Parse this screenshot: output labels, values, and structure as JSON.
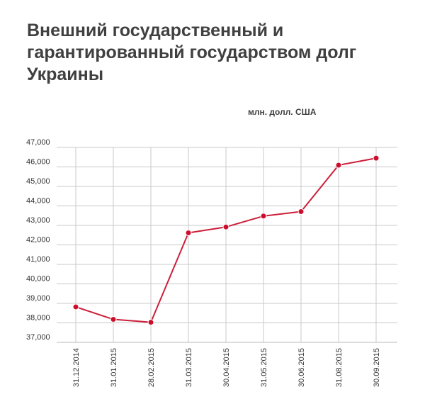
{
  "chart_data": {
    "type": "line",
    "title": "Внешний государственный и гарантированный государством долг Украины",
    "unit_label": "млн. долл. США",
    "x": [
      "31.12.2014",
      "31.01.2015",
      "28.02.2015",
      "31.03.2015",
      "30.04.2015",
      "31.05.2015",
      "30.06.2015",
      "31.08.2015",
      "30.09.2015"
    ],
    "y_ticks": [
      "47,000",
      "46,000",
      "45,000",
      "44,000",
      "43,000",
      "42,000",
      "41,000",
      "40,000",
      "39,000",
      "38,000",
      "37,000"
    ],
    "series": [
      {
        "values": [
          38820,
          38180,
          38030,
          42620,
          42920,
          43480,
          43710,
          46090,
          46450
        ]
      }
    ],
    "ylim": [
      37000,
      47000
    ],
    "grid": true,
    "colors": {
      "line": "#cc1f3a",
      "marker": "#cc0e2d",
      "grid": "#c8c8c8",
      "text": "#333333",
      "title": "#404040"
    }
  }
}
